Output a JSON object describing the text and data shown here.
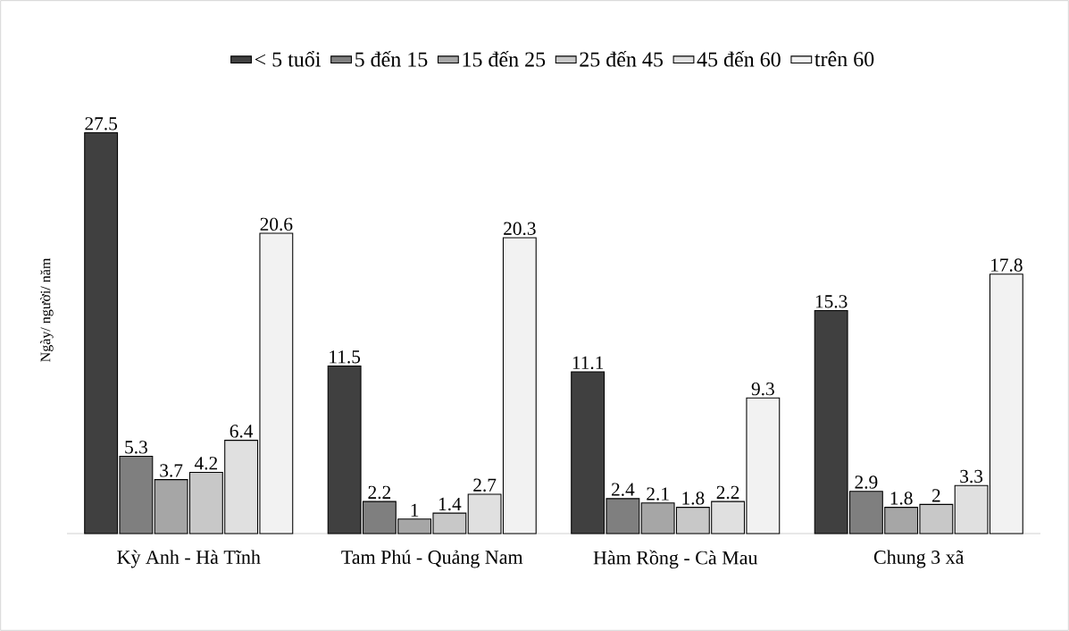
{
  "chart_data": {
    "type": "bar",
    "ylabel": "Ngày/ người/ năm",
    "categories": [
      "Kỳ Anh - Hà Tĩnh",
      "Tam Phú - Quảng Nam",
      "Hàm Rồng - Cà Mau",
      "Chung 3 xã"
    ],
    "series": [
      {
        "name": "< 5 tuổi",
        "color": "#404040",
        "values": [
          27.5,
          11.5,
          11.1,
          15.3
        ],
        "value_labels": [
          "27.5",
          "11.5",
          "11.1",
          "15.3"
        ]
      },
      {
        "name": "5 đến 15",
        "color": "#7f7f7f",
        "values": [
          5.3,
          2.2,
          2.4,
          2.9
        ],
        "value_labels": [
          "5.3",
          "2.2",
          "2.4",
          "2.9"
        ]
      },
      {
        "name": "15 đến 25",
        "color": "#a6a6a6",
        "values": [
          3.7,
          1,
          2.1,
          1.8
        ],
        "value_labels": [
          "3.7",
          "1",
          "2.1",
          "1.8"
        ]
      },
      {
        "name": "25 đến 45",
        "color": "#c8c8c8",
        "values": [
          4.2,
          1.4,
          1.8,
          2
        ],
        "value_labels": [
          "4.2",
          "1.4",
          "1.8",
          "2"
        ]
      },
      {
        "name": "45 đến 60",
        "color": "#e0e0e0",
        "values": [
          6.4,
          2.7,
          2.2,
          3.3
        ],
        "value_labels": [
          "6.4",
          "2.7",
          "2.2",
          "3.3"
        ]
      },
      {
        "name": "trên 60",
        "color": "#f2f2f2",
        "values": [
          20.6,
          20.3,
          9.3,
          17.8
        ],
        "value_labels": [
          "20.6",
          "20.3",
          "9.3",
          "17.8"
        ]
      }
    ],
    "legend": "top"
  }
}
